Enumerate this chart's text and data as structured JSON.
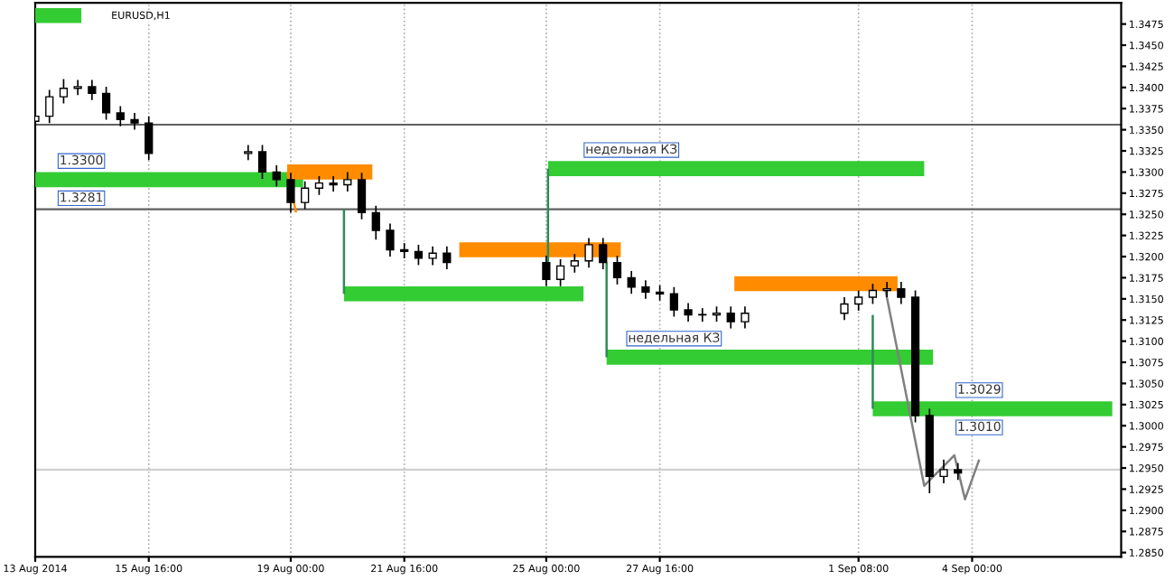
{
  "chart_data": {
    "type": "candlestick",
    "title": "EURUSD,H1",
    "x": [
      "2014-08-13T00:00",
      "2014-08-13T08:00",
      "2014-08-13T16:00",
      "2014-08-14T00:00",
      "2014-08-14T08:00",
      "2014-08-14T16:00",
      "2014-08-15T00:00",
      "2014-08-15T08:00",
      "2014-08-15T16:00",
      "2014-08-18T00:00",
      "2014-08-18T08:00",
      "2014-08-18T16:00",
      "2014-08-19T00:00",
      "2014-08-19T08:00",
      "2014-08-19T16:00",
      "2014-08-20T00:00",
      "2014-08-20T08:00",
      "2014-08-20T16:00",
      "2014-08-21T00:00",
      "2014-08-21T08:00",
      "2014-08-21T16:00",
      "2014-08-22T00:00",
      "2014-08-22T08:00",
      "2014-08-22T16:00",
      "2014-08-25T00:00",
      "2014-08-25T08:00",
      "2014-08-25T16:00",
      "2014-08-26T00:00",
      "2014-08-26T08:00",
      "2014-08-26T16:00",
      "2014-08-27T00:00",
      "2014-08-27T08:00",
      "2014-08-27T16:00",
      "2014-08-28T00:00",
      "2014-08-28T08:00",
      "2014-08-28T16:00",
      "2014-08-29T00:00",
      "2014-08-29T08:00",
      "2014-08-29T16:00",
      "2014-09-01T00:00",
      "2014-09-01T08:00",
      "2014-09-01T16:00",
      "2014-09-02T00:00",
      "2014-09-02T08:00",
      "2014-09-02T16:00",
      "2014-09-03T00:00",
      "2014-09-03T08:00",
      "2014-09-03T16:00"
    ],
    "ohlc": [
      [
        1.336,
        1.3374,
        1.3352,
        1.3366
      ],
      [
        1.3366,
        1.3397,
        1.3358,
        1.3389
      ],
      [
        1.3389,
        1.341,
        1.3381,
        1.3399
      ],
      [
        1.3399,
        1.3409,
        1.3391,
        1.3401
      ],
      [
        1.3401,
        1.3409,
        1.3385,
        1.3393
      ],
      [
        1.3393,
        1.3401,
        1.3362,
        1.337
      ],
      [
        1.337,
        1.3378,
        1.3354,
        1.3362
      ],
      [
        1.3362,
        1.337,
        1.335,
        1.3358
      ],
      [
        1.3358,
        1.3366,
        1.3314,
        1.3322
      ],
      [
        1.3322,
        1.3332,
        1.3314,
        1.3324
      ],
      [
        1.3324,
        1.3332,
        1.3292,
        1.33
      ],
      [
        1.33,
        1.3308,
        1.3283,
        1.3291
      ],
      [
        1.3291,
        1.3299,
        1.3252,
        1.3264
      ],
      [
        1.3264,
        1.3289,
        1.3256,
        1.3281
      ],
      [
        1.3281,
        1.3295,
        1.3273,
        1.3287
      ],
      [
        1.3287,
        1.3295,
        1.3277,
        1.3285
      ],
      [
        1.3285,
        1.33,
        1.3277,
        1.3291
      ],
      [
        1.3291,
        1.3299,
        1.3244,
        1.3252
      ],
      [
        1.3252,
        1.326,
        1.322,
        1.3231
      ],
      [
        1.3231,
        1.3239,
        1.32,
        1.3208
      ],
      [
        1.3208,
        1.3216,
        1.3198,
        1.3206
      ],
      [
        1.3206,
        1.3214,
        1.319,
        1.3198
      ],
      [
        1.3198,
        1.3212,
        1.319,
        1.3204
      ],
      [
        1.3204,
        1.3212,
        1.3185,
        1.3193
      ],
      [
        1.3193,
        1.3201,
        1.3165,
        1.3173
      ],
      [
        1.3173,
        1.3197,
        1.3165,
        1.3189
      ],
      [
        1.3189,
        1.3203,
        1.3181,
        1.3195
      ],
      [
        1.3195,
        1.3222,
        1.3187,
        1.3214
      ],
      [
        1.3214,
        1.3222,
        1.3185,
        1.3193
      ],
      [
        1.3193,
        1.3201,
        1.3167,
        1.3175
      ],
      [
        1.3175,
        1.3183,
        1.3156,
        1.3164
      ],
      [
        1.3164,
        1.3172,
        1.315,
        1.3158
      ],
      [
        1.3158,
        1.3166,
        1.3148,
        1.3156
      ],
      [
        1.3156,
        1.3164,
        1.3129,
        1.3137
      ],
      [
        1.3137,
        1.3145,
        1.3123,
        1.3131
      ],
      [
        1.3131,
        1.3139,
        1.3123,
        1.3131
      ],
      [
        1.3131,
        1.3141,
        1.3123,
        1.3133
      ],
      [
        1.3133,
        1.3141,
        1.3115,
        1.3123
      ],
      [
        1.3123,
        1.3141,
        1.3115,
        1.3133
      ],
      [
        1.3133,
        1.3152,
        1.3125,
        1.3144
      ],
      [
        1.3144,
        1.316,
        1.3136,
        1.3152
      ],
      [
        1.3152,
        1.3168,
        1.3144,
        1.316
      ],
      [
        1.316,
        1.317,
        1.3152,
        1.3162
      ],
      [
        1.3162,
        1.317,
        1.3144,
        1.3152
      ],
      [
        1.3152,
        1.316,
        1.3004,
        1.3012
      ],
      [
        1.3012,
        1.302,
        1.292,
        1.294
      ],
      [
        1.294,
        1.296,
        1.2932,
        1.2948
      ],
      [
        1.2948,
        1.2956,
        1.2936,
        1.2944
      ]
    ],
    "series": [
      {
        "type": "line",
        "color": "#33cc33",
        "x": [
          "2014-08-13T00:00",
          "2014-08-14T02:00"
        ],
        "values": [
          1.3485,
          1.3485
        ]
      },
      {
        "type": "line",
        "color": "#33cc33",
        "x": [
          "2014-08-13T00:00",
          "2014-08-19T07:00"
        ],
        "values": [
          1.3291,
          1.3291
        ]
      },
      {
        "type": "line",
        "color": "#33cc33",
        "x": [
          "2014-08-25T01:00",
          "2014-09-02T21:00"
        ],
        "values": [
          1.3304,
          1.3304
        ]
      },
      {
        "type": "line",
        "color": "#33cc33",
        "x": [
          "2014-08-20T06:00",
          "2014-08-25T21:00"
        ],
        "values": [
          1.3156,
          1.3156
        ]
      },
      {
        "type": "line",
        "color": "#33cc33",
        "x": [
          "2014-08-26T10:00",
          "2014-09-03T02:00"
        ],
        "values": [
          1.3081,
          1.3081
        ]
      },
      {
        "type": "line",
        "color": "#33cc33",
        "x": [
          "2014-09-01T16:00",
          "2014-09-07T07:00"
        ],
        "values": [
          1.302,
          1.302
        ]
      },
      {
        "type": "line",
        "color": "#ff8c00",
        "x": [
          "2014-08-18T22:00",
          "2014-08-20T22:00"
        ],
        "values": [
          1.33,
          1.33
        ]
      },
      {
        "type": "line",
        "color": "#ff8c00",
        "x": [
          "2014-08-22T23:00",
          "2014-08-26T18:00"
        ],
        "values": [
          1.3208,
          1.3208
        ]
      },
      {
        "type": "line",
        "color": "#ff8c00",
        "x": [
          "2014-08-29T10:00",
          "2014-09-02T06:00"
        ],
        "values": [
          1.3168,
          1.3168
        ]
      },
      {
        "type": "line",
        "color": "#ff8c00",
        "x": [
          "2014-08-18T22:00",
          "2014-08-19T03:00"
        ],
        "values": [
          1.33,
          1.3252
        ]
      },
      {
        "type": "line",
        "color": "#2e8b57",
        "x": [
          "2014-08-20T06:00",
          "2014-08-20T06:00"
        ],
        "values": [
          1.3256,
          1.3156
        ]
      },
      {
        "type": "line",
        "color": "#2e8b57",
        "x": [
          "2014-08-25T01:00",
          "2014-08-25T01:00"
        ],
        "values": [
          1.3304,
          1.3193
        ]
      },
      {
        "type": "line",
        "color": "#2e8b57",
        "x": [
          "2014-08-26T10:00",
          "2014-08-26T10:00"
        ],
        "values": [
          1.3193,
          1.3081
        ]
      },
      {
        "type": "line",
        "color": "#2e8b57",
        "x": [
          "2014-09-01T16:00",
          "2014-09-01T16:00"
        ],
        "values": [
          1.3131,
          1.302
        ]
      },
      {
        "type": "line",
        "color": "#808080",
        "x": [
          "2014-09-01T23:00",
          "2014-09-02T21:00",
          "2014-09-03T14:00",
          "2014-09-03T20:00",
          "2014-09-04T04:00"
        ],
        "values": [
          1.3162,
          1.2929,
          1.2965,
          1.2913,
          1.296
        ]
      }
    ],
    "ref_lines": [
      {
        "axis": "y",
        "value": 1.3356,
        "color": "#606060"
      },
      {
        "axis": "y",
        "value": 1.3256,
        "color": "#606060"
      },
      {
        "axis": "y",
        "value": 1.2948,
        "color": "#d0d0d0"
      }
    ],
    "annotations": [
      {
        "text": "недельная КЗ",
        "x": "2014-08-27T00:00",
        "y": 1.3304
      },
      {
        "text": "недельная КЗ",
        "x": "2014-08-28T00:00",
        "y": 1.3081
      },
      {
        "text": "1.3300",
        "x": "2014-08-14T02:00",
        "y": 1.3291
      },
      {
        "text": "1.3281",
        "x": "2014-08-14T02:00",
        "y": 1.3291
      },
      {
        "text": "1.3029",
        "x": "2014-09-04T04:00",
        "y": 1.302
      },
      {
        "text": "1.3010",
        "x": "2014-09-04T04:00",
        "y": 1.302
      }
    ],
    "xlim": [
      "2014-08-13T00:00",
      "2014-09-07T12:00"
    ],
    "xticks": [
      {
        "value": "2014-08-13T00:00",
        "label": "13 Aug 2014"
      },
      {
        "value": "2014-08-15T16:00",
        "label": "15 Aug 16:00"
      },
      {
        "value": "2014-08-19T00:00",
        "label": "19 Aug 00:00"
      },
      {
        "value": "2014-08-21T16:00",
        "label": "21 Aug 16:00"
      },
      {
        "value": "2014-08-25T00:00",
        "label": "25 Aug 00:00"
      },
      {
        "value": "2014-08-27T16:00",
        "label": "27 Aug 16:00"
      },
      {
        "value": "2014-09-01T08:00",
        "label": "1 Sep 08:00"
      },
      {
        "value": "2014-09-04T00:00",
        "label": "4 Sep 00:00"
      }
    ],
    "ylim": [
      1.2845,
      1.35
    ],
    "yticks": [
      {
        "value": 1.285,
        "label": "1.2850"
      },
      {
        "value": 1.2875,
        "label": "1.2875"
      },
      {
        "value": 1.29,
        "label": "1.2900"
      },
      {
        "value": 1.2925,
        "label": "1.2925"
      },
      {
        "value": 1.295,
        "label": "1.2950"
      },
      {
        "value": 1.2975,
        "label": "1.2975"
      },
      {
        "value": 1.3,
        "label": "1.3000"
      },
      {
        "value": 1.3025,
        "label": "1.3025"
      },
      {
        "value": 1.305,
        "label": "1.3050"
      },
      {
        "value": 1.3075,
        "label": "1.3075"
      },
      {
        "value": 1.31,
        "label": "1.3100"
      },
      {
        "value": 1.3125,
        "label": "1.3125"
      },
      {
        "value": 1.315,
        "label": "1.3150"
      },
      {
        "value": 1.3175,
        "label": "1.3175"
      },
      {
        "value": 1.32,
        "label": "1.3200"
      },
      {
        "value": 1.3225,
        "label": "1.3225"
      },
      {
        "value": 1.325,
        "label": "1.3250"
      },
      {
        "value": 1.3275,
        "label": "1.3275"
      },
      {
        "value": 1.33,
        "label": "1.3300"
      },
      {
        "value": 1.3325,
        "label": "1.3325"
      },
      {
        "value": 1.335,
        "label": "1.3350"
      },
      {
        "value": 1.3375,
        "label": "1.3375"
      },
      {
        "value": 1.34,
        "label": "1.3400"
      },
      {
        "value": 1.3425,
        "label": "1.3425"
      },
      {
        "value": 1.345,
        "label": "1.3450"
      },
      {
        "value": 1.3475,
        "label": "1.3475"
      }
    ],
    "grid": "x"
  }
}
